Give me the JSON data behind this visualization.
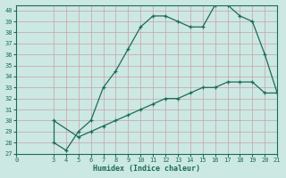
{
  "xlabel": "Humidex (Indice chaleur)",
  "ylabel": "",
  "background_color": "#cce8e2",
  "grid_color": "#b0d4ce",
  "line_color": "#1a6b5a",
  "xlim": [
    0,
    21
  ],
  "ylim": [
    27,
    40.5
  ],
  "xticks": [
    0,
    3,
    4,
    5,
    6,
    7,
    8,
    9,
    10,
    11,
    12,
    13,
    14,
    15,
    16,
    17,
    18,
    19,
    20,
    21
  ],
  "yticks": [
    27,
    28,
    29,
    30,
    31,
    32,
    33,
    34,
    35,
    36,
    37,
    38,
    39,
    40
  ],
  "upper_x": [
    3,
    4,
    5,
    6,
    7,
    8,
    9,
    10,
    11,
    12,
    13,
    14,
    15,
    16,
    17,
    18,
    19,
    20,
    21
  ],
  "upper_y": [
    28.0,
    27.3,
    29.0,
    30.0,
    33.0,
    34.5,
    36.5,
    38.5,
    39.5,
    39.5,
    39.0,
    38.5,
    38.5,
    40.5,
    40.5,
    39.5,
    39.0,
    36.0,
    32.5
  ],
  "lower_x": [
    3,
    5,
    6,
    7,
    8,
    9,
    10,
    11,
    12,
    13,
    14,
    15,
    16,
    17,
    18,
    19,
    20,
    21
  ],
  "lower_y": [
    30.0,
    28.5,
    29.0,
    29.5,
    30.0,
    30.5,
    31.0,
    31.5,
    32.0,
    32.0,
    32.5,
    33.0,
    33.0,
    33.5,
    33.5,
    33.5,
    32.5,
    32.5
  ],
  "marker": "+"
}
